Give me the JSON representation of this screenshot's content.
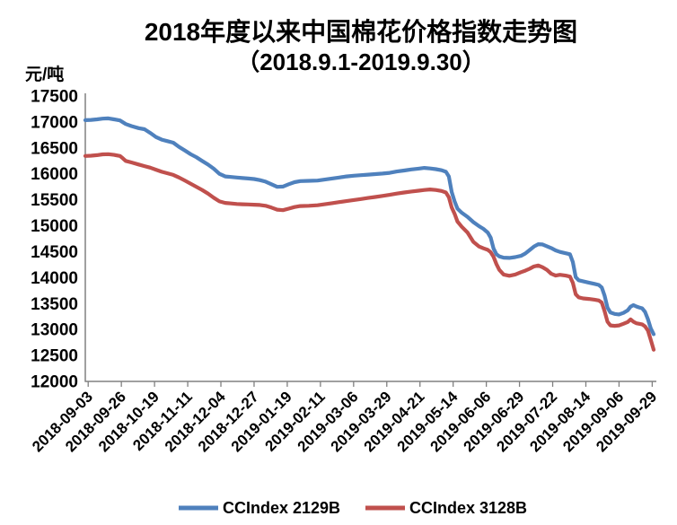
{
  "chart_data": {
    "type": "line",
    "title": "2018年度以来中国棉花价格指数走势图",
    "subtitle": "（2018.9.1-2019.9.30）",
    "xlabel": "",
    "ylabel": "元/吨",
    "ylim": [
      12000,
      17500
    ],
    "y_tick_step": 500,
    "y_ticks": [
      17500,
      17000,
      16500,
      16000,
      15500,
      15000,
      14500,
      14000,
      13500,
      13000,
      12500,
      12000
    ],
    "x_ticks": [
      "2018-09-03",
      "2018-09-26",
      "2018-10-19",
      "2018-11-11",
      "2018-12-04",
      "2018-12-27",
      "2019-01-19",
      "2019-02-11",
      "2019-03-06",
      "2019-03-29",
      "2019-04-21",
      "2019-05-14",
      "2019-06-06",
      "2019-06-29",
      "2019-07-22",
      "2019-08-14",
      "2019-09-06",
      "2019-09-29"
    ],
    "x_range": [
      "2018-09-01",
      "2019-09-30"
    ],
    "grid": false,
    "legend_position": "bottom",
    "axis_color": "#808080",
    "text_color": "#000000",
    "series": [
      {
        "name": "CCIndex 2129B",
        "color": "#4F81BD",
        "points": [
          [
            "2018-09-01",
            17035
          ],
          [
            "2018-09-05",
            17040
          ],
          [
            "2018-09-09",
            17050
          ],
          [
            "2018-09-13",
            17065
          ],
          [
            "2018-09-17",
            17070
          ],
          [
            "2018-09-21",
            17050
          ],
          [
            "2018-09-25",
            17030
          ],
          [
            "2018-09-29",
            16960
          ],
          [
            "2018-10-03",
            16920
          ],
          [
            "2018-10-08",
            16880
          ],
          [
            "2018-10-12",
            16860
          ],
          [
            "2018-10-16",
            16790
          ],
          [
            "2018-10-20",
            16710
          ],
          [
            "2018-10-24",
            16660
          ],
          [
            "2018-10-28",
            16630
          ],
          [
            "2018-11-01",
            16600
          ],
          [
            "2018-11-05",
            16520
          ],
          [
            "2018-11-09",
            16450
          ],
          [
            "2018-11-13",
            16380
          ],
          [
            "2018-11-17",
            16320
          ],
          [
            "2018-11-21",
            16250
          ],
          [
            "2018-11-25",
            16180
          ],
          [
            "2018-11-29",
            16100
          ],
          [
            "2018-12-03",
            16000
          ],
          [
            "2018-12-07",
            15950
          ],
          [
            "2018-12-11",
            15940
          ],
          [
            "2018-12-15",
            15930
          ],
          [
            "2018-12-19",
            15920
          ],
          [
            "2018-12-23",
            15910
          ],
          [
            "2018-12-27",
            15900
          ],
          [
            "2018-12-31",
            15880
          ],
          [
            "2019-01-04",
            15850
          ],
          [
            "2019-01-08",
            15800
          ],
          [
            "2019-01-12",
            15750
          ],
          [
            "2019-01-16",
            15755
          ],
          [
            "2019-01-20",
            15800
          ],
          [
            "2019-01-24",
            15840
          ],
          [
            "2019-01-28",
            15860
          ],
          [
            "2019-02-03",
            15865
          ],
          [
            "2019-02-09",
            15870
          ],
          [
            "2019-02-14",
            15890
          ],
          [
            "2019-02-19",
            15910
          ],
          [
            "2019-02-24",
            15930
          ],
          [
            "2019-03-01",
            15950
          ],
          [
            "2019-03-06",
            15965
          ],
          [
            "2019-03-11",
            15975
          ],
          [
            "2019-03-16",
            15985
          ],
          [
            "2019-03-21",
            15995
          ],
          [
            "2019-03-26",
            16005
          ],
          [
            "2019-03-31",
            16020
          ],
          [
            "2019-04-05",
            16045
          ],
          [
            "2019-04-10",
            16065
          ],
          [
            "2019-04-15",
            16085
          ],
          [
            "2019-04-20",
            16100
          ],
          [
            "2019-04-24",
            16115
          ],
          [
            "2019-04-28",
            16105
          ],
          [
            "2019-05-02",
            16090
          ],
          [
            "2019-05-06",
            16070
          ],
          [
            "2019-05-09",
            16040
          ],
          [
            "2019-05-11",
            15950
          ],
          [
            "2019-05-13",
            15650
          ],
          [
            "2019-05-15",
            15470
          ],
          [
            "2019-05-17",
            15330
          ],
          [
            "2019-05-20",
            15250
          ],
          [
            "2019-05-24",
            15170
          ],
          [
            "2019-05-28",
            15070
          ],
          [
            "2019-06-01",
            14990
          ],
          [
            "2019-06-04",
            14940
          ],
          [
            "2019-06-07",
            14870
          ],
          [
            "2019-06-09",
            14770
          ],
          [
            "2019-06-11",
            14560
          ],
          [
            "2019-06-13",
            14450
          ],
          [
            "2019-06-15",
            14410
          ],
          [
            "2019-06-18",
            14385
          ],
          [
            "2019-06-22",
            14380
          ],
          [
            "2019-06-26",
            14395
          ],
          [
            "2019-06-30",
            14420
          ],
          [
            "2019-07-03",
            14465
          ],
          [
            "2019-07-06",
            14530
          ],
          [
            "2019-07-09",
            14600
          ],
          [
            "2019-07-12",
            14645
          ],
          [
            "2019-07-15",
            14640
          ],
          [
            "2019-07-18",
            14605
          ],
          [
            "2019-07-21",
            14570
          ],
          [
            "2019-07-24",
            14525
          ],
          [
            "2019-07-27",
            14495
          ],
          [
            "2019-07-31",
            14470
          ],
          [
            "2019-08-03",
            14450
          ],
          [
            "2019-08-05",
            14300
          ],
          [
            "2019-08-07",
            14010
          ],
          [
            "2019-08-09",
            13950
          ],
          [
            "2019-08-12",
            13930
          ],
          [
            "2019-08-16",
            13905
          ],
          [
            "2019-08-20",
            13880
          ],
          [
            "2019-08-23",
            13860
          ],
          [
            "2019-08-25",
            13810
          ],
          [
            "2019-08-27",
            13650
          ],
          [
            "2019-08-29",
            13420
          ],
          [
            "2019-08-31",
            13330
          ],
          [
            "2019-09-03",
            13300
          ],
          [
            "2019-09-06",
            13290
          ],
          [
            "2019-09-09",
            13320
          ],
          [
            "2019-09-12",
            13370
          ],
          [
            "2019-09-14",
            13440
          ],
          [
            "2019-09-16",
            13470
          ],
          [
            "2019-09-18",
            13445
          ],
          [
            "2019-09-20",
            13425
          ],
          [
            "2019-09-22",
            13410
          ],
          [
            "2019-09-24",
            13340
          ],
          [
            "2019-09-26",
            13200
          ],
          [
            "2019-09-28",
            13020
          ],
          [
            "2019-09-30",
            12910
          ]
        ]
      },
      {
        "name": "CCIndex 3128B",
        "color": "#C0504D",
        "points": [
          [
            "2018-09-01",
            16345
          ],
          [
            "2018-09-05",
            16350
          ],
          [
            "2018-09-09",
            16360
          ],
          [
            "2018-09-13",
            16375
          ],
          [
            "2018-09-17",
            16380
          ],
          [
            "2018-09-21",
            16365
          ],
          [
            "2018-09-25",
            16345
          ],
          [
            "2018-09-27",
            16300
          ],
          [
            "2018-09-29",
            16250
          ],
          [
            "2018-10-03",
            16220
          ],
          [
            "2018-10-08",
            16180
          ],
          [
            "2018-10-12",
            16150
          ],
          [
            "2018-10-16",
            16120
          ],
          [
            "2018-10-20",
            16080
          ],
          [
            "2018-10-24",
            16040
          ],
          [
            "2018-10-28",
            16010
          ],
          [
            "2018-11-01",
            15980
          ],
          [
            "2018-11-05",
            15930
          ],
          [
            "2018-11-09",
            15870
          ],
          [
            "2018-11-13",
            15810
          ],
          [
            "2018-11-17",
            15750
          ],
          [
            "2018-11-21",
            15690
          ],
          [
            "2018-11-25",
            15620
          ],
          [
            "2018-11-29",
            15540
          ],
          [
            "2018-12-03",
            15470
          ],
          [
            "2018-12-07",
            15440
          ],
          [
            "2018-12-11",
            15430
          ],
          [
            "2018-12-15",
            15420
          ],
          [
            "2018-12-19",
            15415
          ],
          [
            "2018-12-23",
            15410
          ],
          [
            "2018-12-27",
            15405
          ],
          [
            "2018-12-31",
            15400
          ],
          [
            "2019-01-04",
            15385
          ],
          [
            "2019-01-08",
            15350
          ],
          [
            "2019-01-12",
            15310
          ],
          [
            "2019-01-16",
            15300
          ],
          [
            "2019-01-20",
            15330
          ],
          [
            "2019-01-24",
            15360
          ],
          [
            "2019-01-28",
            15380
          ],
          [
            "2019-02-03",
            15385
          ],
          [
            "2019-02-09",
            15395
          ],
          [
            "2019-02-14",
            15415
          ],
          [
            "2019-02-19",
            15435
          ],
          [
            "2019-02-24",
            15455
          ],
          [
            "2019-03-01",
            15475
          ],
          [
            "2019-03-06",
            15495
          ],
          [
            "2019-03-11",
            15515
          ],
          [
            "2019-03-16",
            15535
          ],
          [
            "2019-03-21",
            15555
          ],
          [
            "2019-03-26",
            15575
          ],
          [
            "2019-03-31",
            15595
          ],
          [
            "2019-04-05",
            15620
          ],
          [
            "2019-04-10",
            15640
          ],
          [
            "2019-04-15",
            15660
          ],
          [
            "2019-04-20",
            15675
          ],
          [
            "2019-04-24",
            15690
          ],
          [
            "2019-04-28",
            15700
          ],
          [
            "2019-05-02",
            15690
          ],
          [
            "2019-05-06",
            15670
          ],
          [
            "2019-05-09",
            15640
          ],
          [
            "2019-05-11",
            15550
          ],
          [
            "2019-05-13",
            15350
          ],
          [
            "2019-05-15",
            15230
          ],
          [
            "2019-05-17",
            15080
          ],
          [
            "2019-05-20",
            14980
          ],
          [
            "2019-05-24",
            14870
          ],
          [
            "2019-05-28",
            14690
          ],
          [
            "2019-06-01",
            14600
          ],
          [
            "2019-06-04",
            14565
          ],
          [
            "2019-06-07",
            14535
          ],
          [
            "2019-06-09",
            14490
          ],
          [
            "2019-06-11",
            14400
          ],
          [
            "2019-06-13",
            14260
          ],
          [
            "2019-06-15",
            14150
          ],
          [
            "2019-06-18",
            14060
          ],
          [
            "2019-06-22",
            14035
          ],
          [
            "2019-06-26",
            14060
          ],
          [
            "2019-06-30",
            14105
          ],
          [
            "2019-07-03",
            14135
          ],
          [
            "2019-07-06",
            14170
          ],
          [
            "2019-07-09",
            14215
          ],
          [
            "2019-07-12",
            14235
          ],
          [
            "2019-07-15",
            14200
          ],
          [
            "2019-07-18",
            14150
          ],
          [
            "2019-07-21",
            14075
          ],
          [
            "2019-07-24",
            14040
          ],
          [
            "2019-07-27",
            14055
          ],
          [
            "2019-07-31",
            14040
          ],
          [
            "2019-08-03",
            14020
          ],
          [
            "2019-08-05",
            13900
          ],
          [
            "2019-08-07",
            13680
          ],
          [
            "2019-08-09",
            13620
          ],
          [
            "2019-08-12",
            13600
          ],
          [
            "2019-08-16",
            13590
          ],
          [
            "2019-08-20",
            13575
          ],
          [
            "2019-08-23",
            13560
          ],
          [
            "2019-08-25",
            13520
          ],
          [
            "2019-08-27",
            13350
          ],
          [
            "2019-08-29",
            13150
          ],
          [
            "2019-08-31",
            13080
          ],
          [
            "2019-09-03",
            13070
          ],
          [
            "2019-09-06",
            13080
          ],
          [
            "2019-09-09",
            13110
          ],
          [
            "2019-09-12",
            13145
          ],
          [
            "2019-09-14",
            13195
          ],
          [
            "2019-09-16",
            13150
          ],
          [
            "2019-09-18",
            13120
          ],
          [
            "2019-09-20",
            13110
          ],
          [
            "2019-09-22",
            13100
          ],
          [
            "2019-09-24",
            13060
          ],
          [
            "2019-09-26",
            12980
          ],
          [
            "2019-09-28",
            12800
          ],
          [
            "2019-09-30",
            12610
          ]
        ]
      }
    ]
  }
}
